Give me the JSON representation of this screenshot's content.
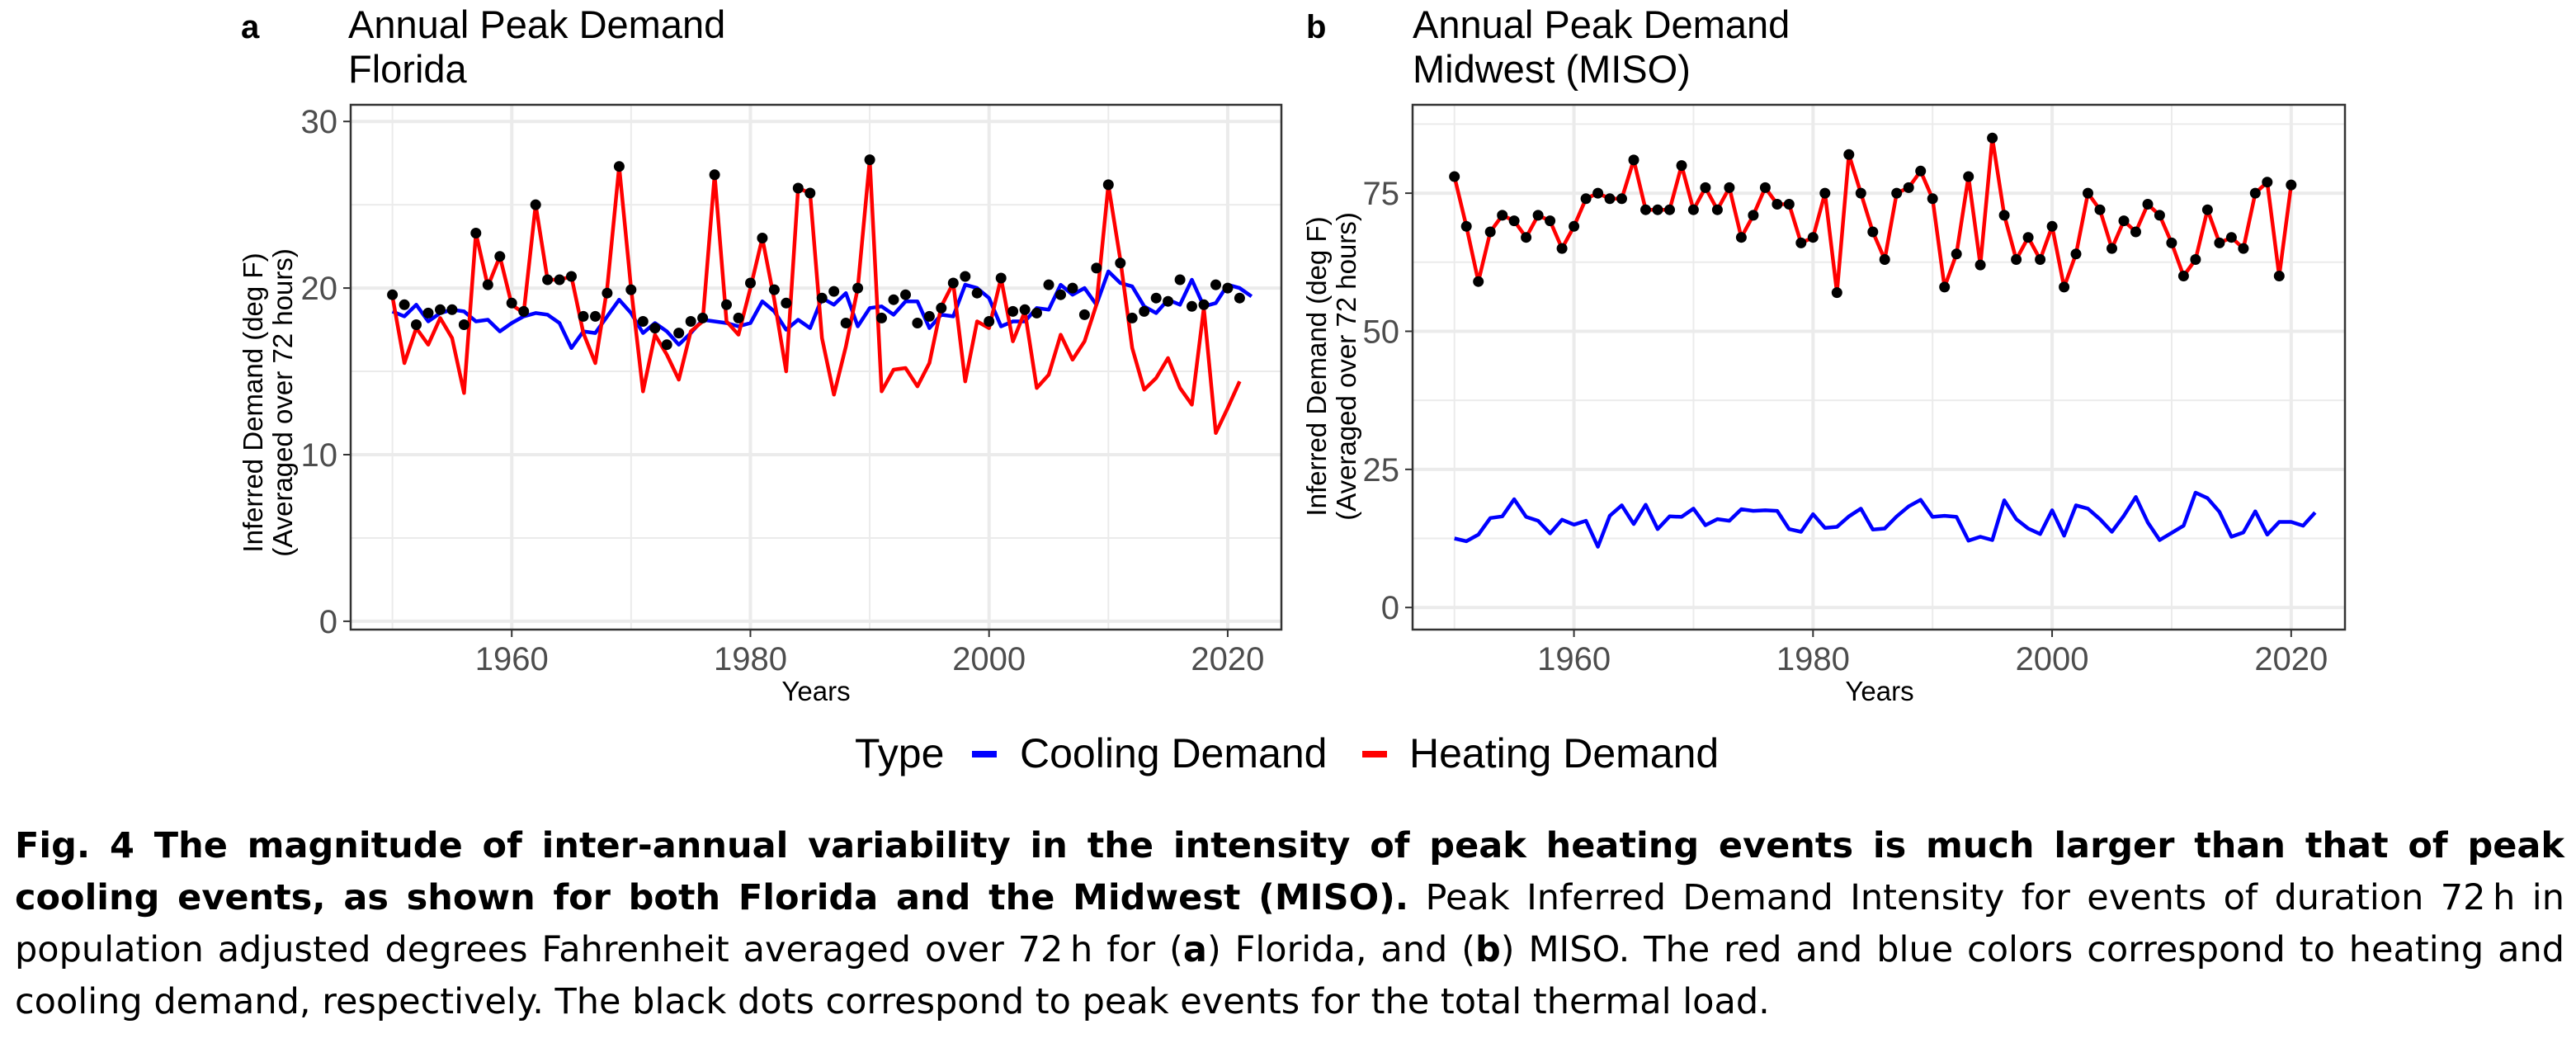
{
  "legend": {
    "title": "Type",
    "entries": [
      {
        "label": "Cooling Demand",
        "color": "#0000ff"
      },
      {
        "label": "Heating Demand",
        "color": "#ff0000"
      }
    ],
    "position": "bottom"
  },
  "caption": {
    "bold": "Fig. 4 The magnitude of inter-annual variability in the intensity of peak heating events is much larger than that of peak cooling events, as shown for both Florida and the Midwest (MISO).",
    "p1": " Peak Inferred Demand Intensity for events of duration 72 h in population adjusted degrees Fahrenheit averaged over 72 h for (",
    "a": "a",
    "p2": ") Florida, and (",
    "b": "b",
    "p3": ") MISO. The red and blue colors correspond to heating and cooling demand, respectively. The black dots correspond to peak events for the total thermal load."
  },
  "colors": {
    "cooling": "#0000ff",
    "heating": "#ff0000",
    "peak": "#000000",
    "grid": "#ebebeb",
    "tick": "#4d4d4d"
  },
  "chart_data": [
    {
      "type": "line",
      "panel_label": "a",
      "title": "Annual Peak Demand",
      "subtitle": "Florida",
      "xlabel": "Years",
      "ylabel": "Inferred Demand (deg F)",
      "ylabel2": "(Averaged over 72 hours)",
      "xlim": [
        1946.5,
        2024.5
      ],
      "ylim": [
        -0.5,
        31.0
      ],
      "xticks": [
        1960,
        1980,
        2000,
        2020
      ],
      "yticks": [
        0,
        10,
        20,
        30
      ],
      "grid": true,
      "x_start": 1950,
      "series": [
        {
          "name": "Cooling Demand",
          "color": "#0000ff",
          "values": [
            18.6,
            18.3,
            19.0,
            18.0,
            18.5,
            18.7,
            18.6,
            18.0,
            18.1,
            17.4,
            17.9,
            18.3,
            18.5,
            18.4,
            17.9,
            16.4,
            17.4,
            17.3,
            18.3,
            19.3,
            18.5,
            17.3,
            17.9,
            17.4,
            16.6,
            17.3,
            18.1,
            18.0,
            17.9,
            17.7,
            17.9,
            19.2,
            18.6,
            17.5,
            18.1,
            17.6,
            19.4,
            19.0,
            19.7,
            17.7,
            18.8,
            18.9,
            18.4,
            19.2,
            19.2,
            17.6,
            18.4,
            18.3,
            20.2,
            20.0,
            19.4,
            17.7,
            18.0,
            18.0,
            18.8,
            18.7,
            20.2,
            19.6,
            20.0,
            19.0,
            21.0,
            20.3,
            20.1,
            18.9,
            18.5,
            19.3,
            19.0,
            20.5,
            18.9,
            19.1,
            20.2,
            20.0,
            19.5
          ]
        },
        {
          "name": "Heating Demand",
          "color": "#ff0000",
          "values": [
            19.5,
            15.5,
            17.6,
            16.6,
            18.2,
            17.0,
            13.7,
            23.3,
            20.1,
            21.9,
            19.0,
            18.5,
            25.0,
            20.5,
            20.5,
            20.7,
            17.3,
            15.5,
            20.0,
            27.3,
            20.0,
            13.8,
            17.2,
            16.0,
            14.5,
            17.4,
            18.0,
            26.8,
            18.0,
            17.2,
            20.0,
            23.0,
            19.3,
            15.0,
            26.0,
            25.7,
            17.0,
            13.6,
            16.5,
            20.0,
            27.7,
            13.8,
            15.1,
            15.2,
            14.1,
            15.5,
            18.9,
            20.3,
            14.4,
            18.0,
            17.6,
            20.6,
            16.8,
            18.6,
            14.0,
            14.8,
            17.2,
            15.7,
            16.8,
            19.0,
            26.2,
            21.7,
            16.4,
            13.9,
            14.6,
            15.8,
            14.0,
            13.0,
            18.8,
            11.3,
            12.8,
            14.4
          ]
        },
        {
          "name": "",
          "color": "#000000",
          "marker": "point",
          "values": [
            19.6,
            19.0,
            17.8,
            18.5,
            18.7,
            18.7,
            17.8,
            23.3,
            20.2,
            21.9,
            19.1,
            18.6,
            25.0,
            20.5,
            20.5,
            20.7,
            18.3,
            18.3,
            19.7,
            27.3,
            19.9,
            18.0,
            17.6,
            16.6,
            17.3,
            18.0,
            18.2,
            26.8,
            19.0,
            18.2,
            20.3,
            23.0,
            19.9,
            19.1,
            26.0,
            25.7,
            19.4,
            19.8,
            17.9,
            20.0,
            27.7,
            18.2,
            19.3,
            19.6,
            17.9,
            18.3,
            18.8,
            20.3,
            20.7,
            19.7,
            18.0,
            20.6,
            18.6,
            18.7,
            18.5,
            20.2,
            19.6,
            20.0,
            18.4,
            21.2,
            26.2,
            21.5,
            18.2,
            18.6,
            19.4,
            19.2,
            20.5,
            18.9,
            19.0,
            20.2,
            20.0,
            19.4
          ]
        }
      ]
    },
    {
      "type": "line",
      "panel_label": "b",
      "title": "Annual Peak Demand",
      "subtitle": "Midwest (MISO)",
      "xlabel": "Years",
      "ylabel": "Inferred Demand (deg F)",
      "ylabel2": "(Averaged over 72 hours)",
      "xlim": [
        1946.5,
        2024.5
      ],
      "ylim": [
        -4.0,
        91.0
      ],
      "xticks": [
        1960,
        1980,
        2000,
        2020
      ],
      "yticks": [
        0,
        25,
        50,
        75
      ],
      "grid": true,
      "x_start": 1950,
      "series": [
        {
          "name": "Cooling Demand",
          "color": "#0000ff",
          "values": [
            12.5,
            12.0,
            13.2,
            16.2,
            16.5,
            19.6,
            16.4,
            15.7,
            13.4,
            15.9,
            15.0,
            15.7,
            11.0,
            16.6,
            18.5,
            15.1,
            18.6,
            14.2,
            16.5,
            16.4,
            17.9,
            14.9,
            16.0,
            15.7,
            17.8,
            17.5,
            17.6,
            17.5,
            14.2,
            13.7,
            16.9,
            14.4,
            14.6,
            16.5,
            17.9,
            14.1,
            14.3,
            16.5,
            18.3,
            19.5,
            16.4,
            16.6,
            16.4,
            12.1,
            12.8,
            12.2,
            19.4,
            16.0,
            14.3,
            13.3,
            17.6,
            13.0,
            18.5,
            17.9,
            16.0,
            13.7,
            16.6,
            20.0,
            15.4,
            12.2,
            13.5,
            14.8,
            20.8,
            19.8,
            17.3,
            12.8,
            13.6,
            17.4,
            13.2,
            15.5,
            15.5,
            14.8,
            17.2
          ]
        },
        {
          "name": "Heating Demand",
          "color": "#ff0000",
          "values": [
            78.0,
            69.0,
            59.0,
            68.0,
            71.0,
            70.0,
            67.0,
            71.0,
            70.0,
            65.0,
            69.0,
            74.0,
            75.0,
            74.0,
            74.0,
            81.0,
            72.0,
            72.0,
            72.0,
            80.0,
            72.0,
            76.0,
            72.0,
            76.0,
            67.0,
            71.0,
            76.0,
            73.0,
            73.0,
            66.0,
            67.0,
            75.0,
            57.0,
            82.0,
            75.0,
            68.0,
            63.0,
            75.0,
            76.0,
            79.0,
            74.0,
            58.0,
            64.0,
            78.0,
            62.0,
            85.0,
            71.0,
            63.0,
            67.0,
            63.0,
            69.0,
            58.0,
            64.0,
            75.0,
            72.0,
            65.0,
            70.0,
            68.0,
            73.0,
            71.0,
            66.0,
            60.0,
            63.0,
            72.0,
            66.0,
            67.0,
            65.0,
            75.0,
            77.0,
            60.0,
            76.5
          ]
        },
        {
          "name": "",
          "color": "#000000",
          "marker": "point",
          "values": [
            78.0,
            69.0,
            59.0,
            68.0,
            71.0,
            70.0,
            67.0,
            71.0,
            70.0,
            65.0,
            69.0,
            74.0,
            75.0,
            74.0,
            74.0,
            81.0,
            72.0,
            72.0,
            72.0,
            80.0,
            72.0,
            76.0,
            72.0,
            76.0,
            67.0,
            71.0,
            76.0,
            73.0,
            73.0,
            66.0,
            67.0,
            75.0,
            57.0,
            82.0,
            75.0,
            68.0,
            63.0,
            75.0,
            76.0,
            79.0,
            74.0,
            58.0,
            64.0,
            78.0,
            62.0,
            85.0,
            71.0,
            63.0,
            67.0,
            63.0,
            69.0,
            58.0,
            64.0,
            75.0,
            72.0,
            65.0,
            70.0,
            68.0,
            73.0,
            71.0,
            66.0,
            60.0,
            63.0,
            72.0,
            66.0,
            67.0,
            65.0,
            75.0,
            77.0,
            60.0,
            76.5
          ]
        }
      ]
    }
  ]
}
